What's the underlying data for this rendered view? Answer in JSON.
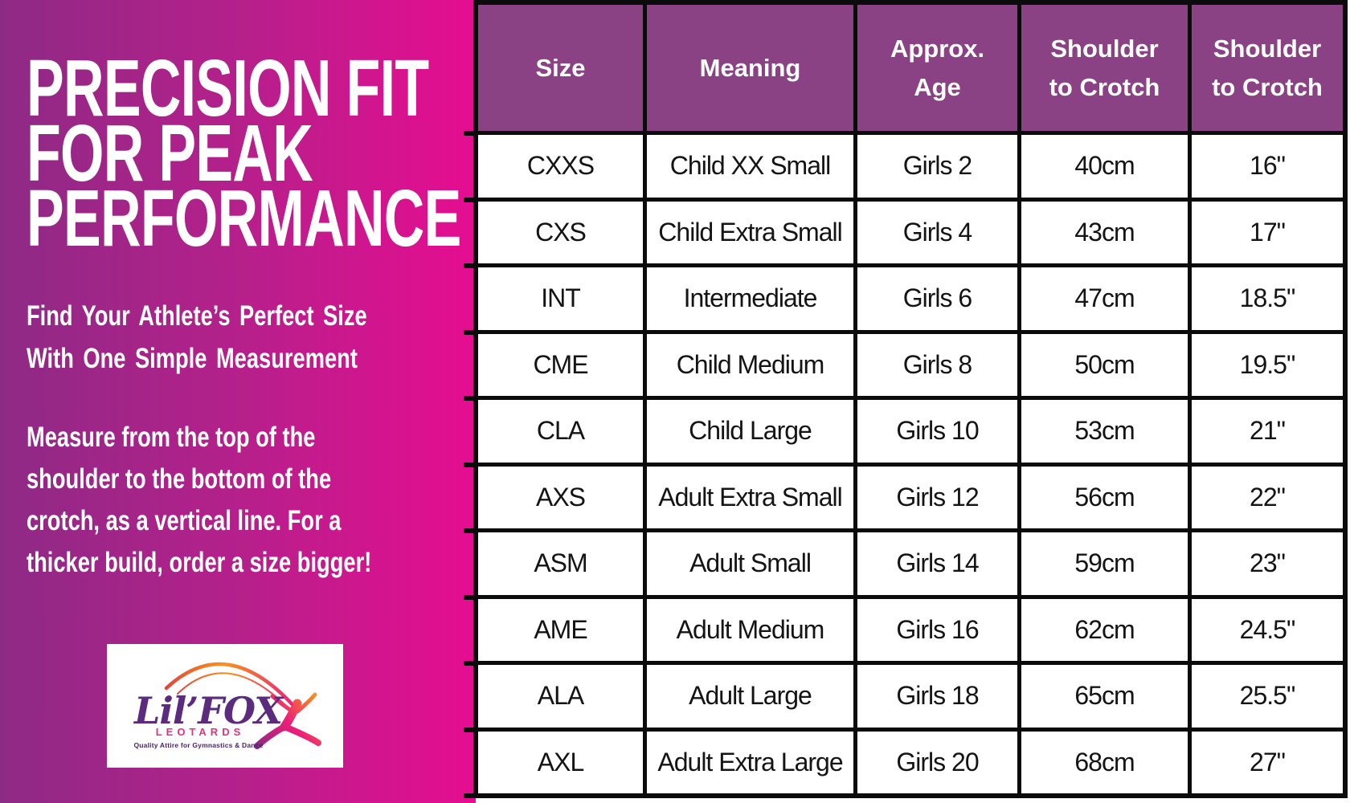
{
  "left_panel": {
    "title_lines": [
      "PRECISION FIT",
      "FOR PEAK",
      "PERFORMANCE"
    ],
    "subtitle_lines": [
      "Find Your Athlete’s Perfect Size",
      "With One Simple Measurement"
    ],
    "body_lines": [
      "Measure from the top of the",
      "shoulder to the bottom of the",
      "crotch, as a vertical line. For a",
      "thicker build, order a size bigger!"
    ],
    "logo": {
      "brand": "Lil’FOX",
      "sub_brand": "LEOTARDS",
      "tagline": "Quality Attire for Gymnastics & Dance"
    },
    "colors": {
      "gradient_start": "#8e2a85",
      "gradient_end": "#e60d90",
      "text": "#ffffff",
      "brand_purple": "#5b2b7e",
      "brand_pink": "#e6317f",
      "arc_orange": "#f7941d",
      "arc_red": "#e2473b",
      "gymnast_pink": "#ec1e79"
    }
  },
  "size_chart": {
    "header_bg": "#8a4285",
    "border_color": "#0b0b0b",
    "columns": [
      {
        "lines": [
          "Size"
        ]
      },
      {
        "lines": [
          "Meaning"
        ]
      },
      {
        "lines": [
          "Approx.",
          "Age"
        ]
      },
      {
        "lines": [
          "Shoulder",
          "to Crotch"
        ]
      },
      {
        "lines": [
          "Shoulder",
          "to Crotch"
        ]
      }
    ],
    "rows": [
      [
        "CXXS",
        "Child XX Small",
        "Girls 2",
        "40cm",
        "16\""
      ],
      [
        "CXS",
        "Child Extra Small",
        "Girls 4",
        "43cm",
        "17\""
      ],
      [
        "INT",
        "Intermediate",
        "Girls 6",
        "47cm",
        "18.5\""
      ],
      [
        "CME",
        "Child Medium",
        "Girls 8",
        "50cm",
        "19.5\""
      ],
      [
        "CLA",
        "Child Large",
        "Girls 10",
        "53cm",
        "21\""
      ],
      [
        "AXS",
        "Adult Extra Small",
        "Girls 12",
        "56cm",
        "22\""
      ],
      [
        "ASM",
        "Adult Small",
        "Girls 14",
        "59cm",
        "23\""
      ],
      [
        "AME",
        "Adult Medium",
        "Girls 16",
        "62cm",
        "24.5\""
      ],
      [
        "ALA",
        "Adult Large",
        "Girls 18",
        "65cm",
        "25.5\""
      ],
      [
        "AXL",
        "Adult Extra Large",
        "Girls 20",
        "68cm",
        "27\""
      ]
    ]
  },
  "chart_data": {
    "type": "table",
    "columns": [
      "Size",
      "Meaning",
      "Approx. Age",
      "Shoulder to Crotch (cm)",
      "Shoulder to Crotch (in)"
    ],
    "rows": [
      [
        "CXXS",
        "Child XX Small",
        "Girls 2",
        "40cm",
        "16\""
      ],
      [
        "CXS",
        "Child Extra Small",
        "Girls 4",
        "43cm",
        "17\""
      ],
      [
        "INT",
        "Intermediate",
        "Girls 6",
        "47cm",
        "18.5\""
      ],
      [
        "CME",
        "Child Medium",
        "Girls 8",
        "50cm",
        "19.5\""
      ],
      [
        "CLA",
        "Child Large",
        "Girls 10",
        "53cm",
        "21\""
      ],
      [
        "AXS",
        "Adult Extra Small",
        "Girls 12",
        "56cm",
        "22\""
      ],
      [
        "ASM",
        "Adult Small",
        "Girls 14",
        "59cm",
        "23\""
      ],
      [
        "AME",
        "Adult Medium",
        "Girls 16",
        "62cm",
        "24.5\""
      ],
      [
        "ALA",
        "Adult Large",
        "Girls 18",
        "65cm",
        "25.5\""
      ],
      [
        "AXL",
        "Adult Extra Large",
        "Girls 20",
        "68cm",
        "27\""
      ]
    ]
  }
}
